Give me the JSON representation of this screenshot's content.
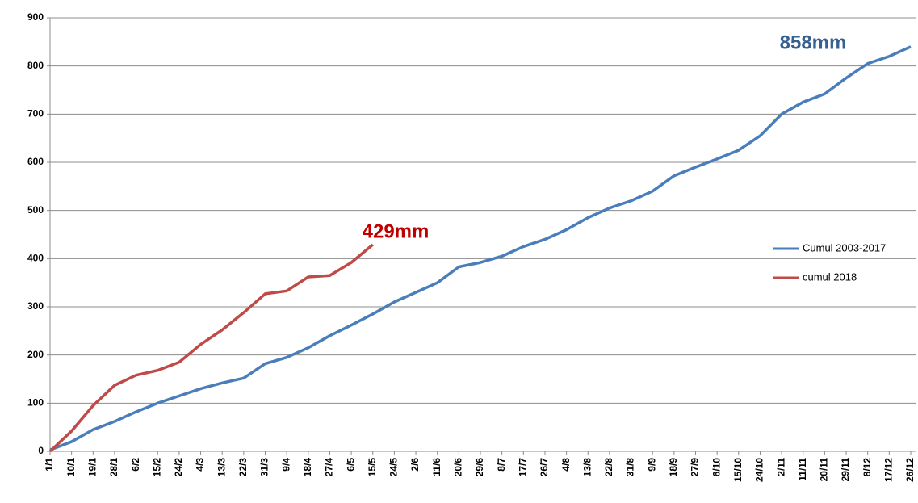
{
  "chart_data": {
    "type": "line",
    "categories": [
      "1/1",
      "10/1",
      "19/1",
      "28/1",
      "6/2",
      "15/2",
      "24/2",
      "4/3",
      "13/3",
      "22/3",
      "31/3",
      "9/4",
      "18/4",
      "27/4",
      "6/5",
      "15/5",
      "24/5",
      "2/6",
      "11/6",
      "20/6",
      "29/6",
      "8/7",
      "17/7",
      "26/7",
      "4/8",
      "13/8",
      "22/8",
      "31/8",
      "9/9",
      "18/9",
      "27/9",
      "6/10",
      "15/10",
      "24/10",
      "2/11",
      "11/11",
      "20/11",
      "29/11",
      "8/12",
      "17/12",
      "26/12"
    ],
    "series": [
      {
        "name": "Cumul 2003-2017",
        "color": "#4a7ebb",
        "values": [
          3,
          20,
          45,
          62,
          82,
          100,
          115,
          130,
          142,
          152,
          182,
          195,
          215,
          240,
          262,
          285,
          310,
          330,
          350,
          383,
          392,
          405,
          425,
          440,
          460,
          485,
          505,
          520,
          540,
          572,
          590,
          607,
          625,
          655,
          700,
          725,
          742,
          775,
          805,
          820,
          840
        ]
      },
      {
        "name": "cumul 2018",
        "color": "#be4b48",
        "values": [
          0,
          42,
          95,
          137,
          158,
          168,
          185,
          222,
          252,
          288,
          327,
          333,
          362,
          365,
          392,
          429,
          null,
          null,
          null,
          null,
          null,
          null,
          null,
          null,
          null,
          null,
          null,
          null,
          null,
          null,
          null,
          null,
          null,
          null,
          null,
          null,
          null,
          null,
          null,
          null,
          null
        ]
      }
    ],
    "annotations": [
      {
        "text": "858mm",
        "color": "#376092"
      },
      {
        "text": "429mm",
        "color": "#c00000"
      }
    ],
    "ylim": [
      0,
      900
    ],
    "yticks": [
      0,
      100,
      200,
      300,
      400,
      500,
      600,
      700,
      800,
      900
    ],
    "grid": true,
    "legend": "right"
  }
}
